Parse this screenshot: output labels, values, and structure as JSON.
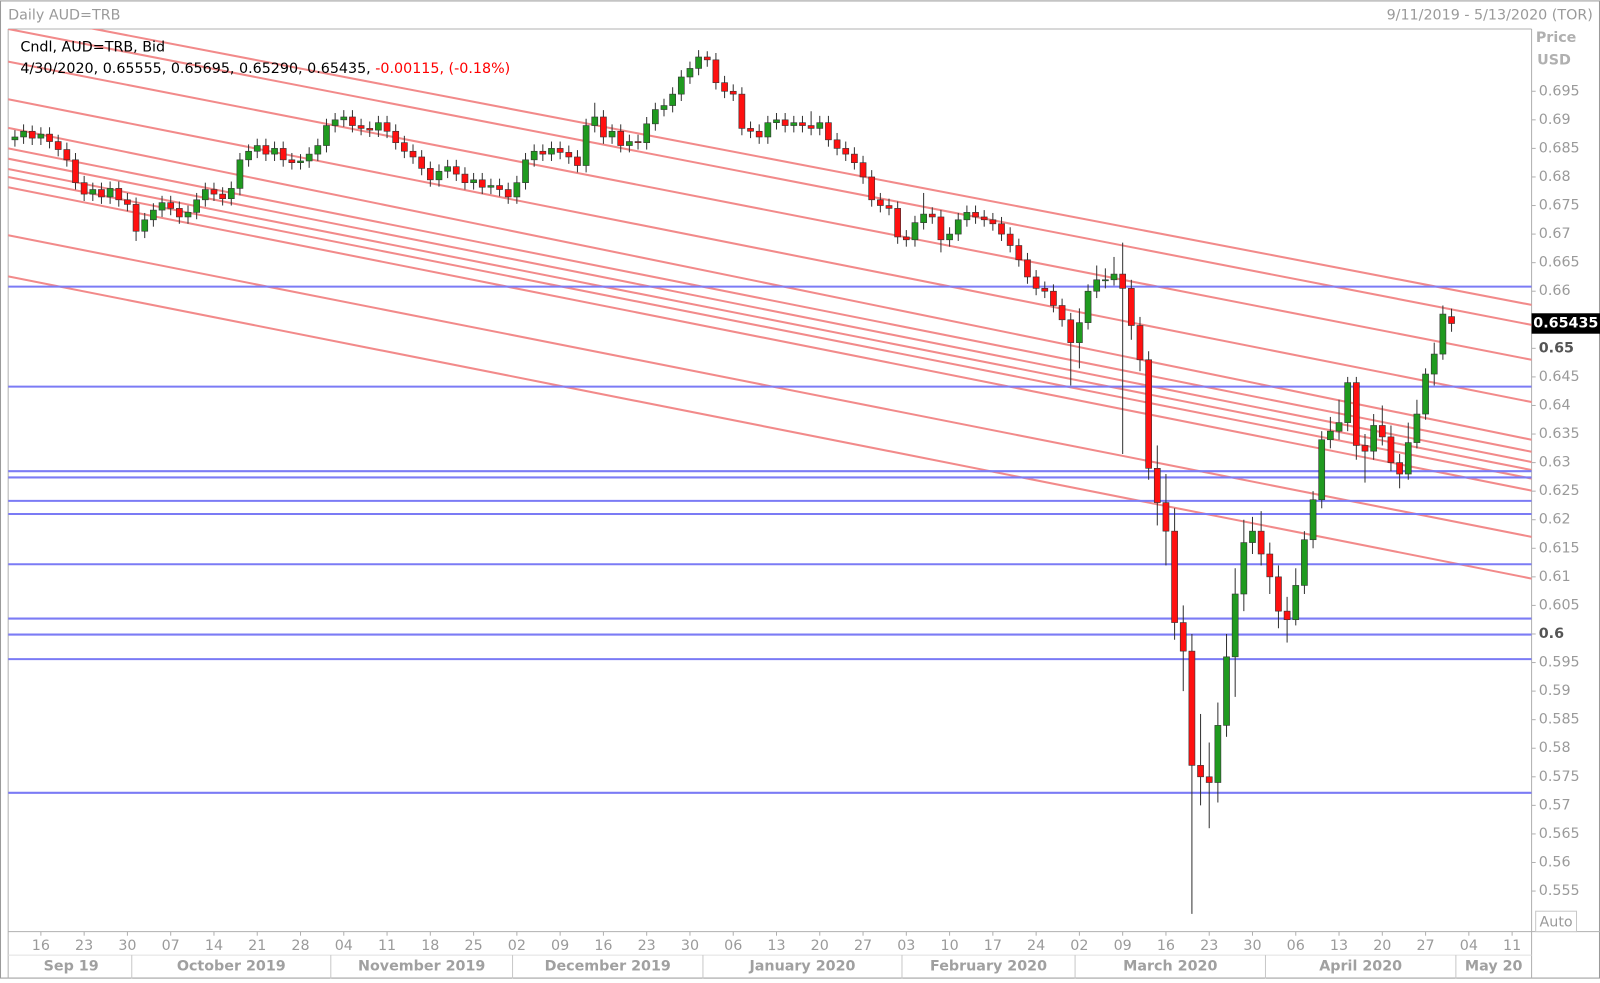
{
  "header": {
    "title": "Daily AUD=TRB",
    "range": "9/11/2019 - 5/13/2020 (TOR)"
  },
  "chart_data": {
    "type": "candlestick",
    "legend": {
      "series": "Cndl, AUD=TRB, Bid",
      "info": "4/30/2020, 0.65555, 0.65695, 0.65290, 0.65435, ",
      "change": "-0.00115, (-0.18%)",
      "change_color": "#ff0000"
    },
    "y_label": "Price",
    "y_unit": "USD",
    "auto_button": "Auto",
    "up_color": "#1f9a1f",
    "down_color": "#ff1010",
    "grid": false,
    "open": [
      0.6865,
      0.687,
      0.688,
      0.6868,
      0.6875,
      0.6862,
      0.6848,
      0.683,
      0.679,
      0.677,
      0.6778,
      0.6765,
      0.678,
      0.676,
      0.6752,
      0.6705,
      0.6725,
      0.6742,
      0.6755,
      0.6745,
      0.673,
      0.6738,
      0.676,
      0.6778,
      0.677,
      0.6762,
      0.678,
      0.683,
      0.6845,
      0.6855,
      0.684,
      0.685,
      0.683,
      0.6825,
      0.6828,
      0.684,
      0.6855,
      0.689,
      0.69,
      0.6905,
      0.689,
      0.6885,
      0.6882,
      0.6895,
      0.688,
      0.686,
      0.6845,
      0.6835,
      0.6815,
      0.6795,
      0.681,
      0.6818,
      0.6805,
      0.679,
      0.6795,
      0.6782,
      0.6785,
      0.6778,
      0.6765,
      0.679,
      0.683,
      0.6845,
      0.684,
      0.685,
      0.6843,
      0.6835,
      0.682,
      0.689,
      0.6905,
      0.687,
      0.688,
      0.6855,
      0.6862,
      0.686,
      0.6893,
      0.6918,
      0.6925,
      0.6945,
      0.6975,
      0.699,
      0.701,
      0.7005,
      0.6965,
      0.695,
      0.6945,
      0.6885,
      0.688,
      0.687,
      0.6895,
      0.69,
      0.689,
      0.6895,
      0.689,
      0.6885,
      0.6895,
      0.6865,
      0.685,
      0.684,
      0.6825,
      0.68,
      0.676,
      0.675,
      0.6745,
      0.6695,
      0.669,
      0.672,
      0.6735,
      0.673,
      0.669,
      0.67,
      0.6725,
      0.6738,
      0.673,
      0.6725,
      0.6718,
      0.67,
      0.668,
      0.6655,
      0.6625,
      0.6605,
      0.66,
      0.6575,
      0.655,
      0.651,
      0.6545,
      0.66,
      0.662,
      0.662,
      0.663,
      0.6605,
      0.654,
      0.648,
      0.629,
      0.623,
      0.618,
      0.602,
      0.597,
      0.577,
      0.575,
      0.574,
      0.584,
      0.596,
      0.607,
      0.616,
      0.618,
      0.614,
      0.61,
      0.604,
      0.6025,
      0.6085,
      0.6165,
      0.6235,
      0.634,
      0.6355,
      0.637,
      0.644,
      0.633,
      0.632,
      0.6365,
      0.6345,
      0.63,
      0.628,
      0.6335,
      0.6385,
      0.6455,
      0.649,
      0.65555
    ],
    "high": [
      0.6882,
      0.6892,
      0.689,
      0.6887,
      0.6887,
      0.6874,
      0.686,
      0.6842,
      0.6802,
      0.679,
      0.679,
      0.6792,
      0.6792,
      0.6772,
      0.6764,
      0.6737,
      0.6754,
      0.6767,
      0.6767,
      0.6757,
      0.675,
      0.6772,
      0.679,
      0.679,
      0.6782,
      0.6792,
      0.6842,
      0.6857,
      0.6867,
      0.6867,
      0.6862,
      0.6862,
      0.6842,
      0.684,
      0.6852,
      0.6867,
      0.6902,
      0.6912,
      0.6917,
      0.6917,
      0.6902,
      0.6897,
      0.6907,
      0.6907,
      0.6892,
      0.6872,
      0.6857,
      0.6847,
      0.6827,
      0.6822,
      0.683,
      0.683,
      0.6817,
      0.6807,
      0.6807,
      0.6797,
      0.6797,
      0.679,
      0.6802,
      0.6842,
      0.6857,
      0.6857,
      0.6862,
      0.6862,
      0.6855,
      0.6847,
      0.6902,
      0.693,
      0.6917,
      0.6892,
      0.6892,
      0.6874,
      0.6874,
      0.6905,
      0.693,
      0.6937,
      0.6957,
      0.6987,
      0.7002,
      0.7022,
      0.702,
      0.7017,
      0.6977,
      0.6962,
      0.6957,
      0.6897,
      0.6892,
      0.6907,
      0.6912,
      0.6912,
      0.6907,
      0.6907,
      0.6915,
      0.6907,
      0.6907,
      0.6877,
      0.6862,
      0.6852,
      0.6837,
      0.6812,
      0.6772,
      0.6762,
      0.6757,
      0.6707,
      0.6732,
      0.6772,
      0.6747,
      0.6742,
      0.6712,
      0.6737,
      0.675,
      0.675,
      0.6742,
      0.6737,
      0.673,
      0.6712,
      0.6692,
      0.6667,
      0.6637,
      0.6617,
      0.6612,
      0.6587,
      0.6562,
      0.657,
      0.6612,
      0.6645,
      0.664,
      0.666,
      0.6685,
      0.662,
      0.6555,
      0.6495,
      0.633,
      0.628,
      0.622,
      0.605,
      0.6,
      0.586,
      0.581,
      0.588,
      0.6,
      0.6115,
      0.62,
      0.6205,
      0.6215,
      0.616,
      0.612,
      0.6065,
      0.6115,
      0.618,
      0.625,
      0.6355,
      0.638,
      0.641,
      0.645,
      0.645,
      0.635,
      0.6385,
      0.64,
      0.6365,
      0.6315,
      0.637,
      0.641,
      0.6465,
      0.651,
      0.6575,
      0.65695
    ],
    "low": [
      0.6853,
      0.6858,
      0.6856,
      0.6856,
      0.685,
      0.6836,
      0.6818,
      0.6778,
      0.6758,
      0.6758,
      0.6753,
      0.6753,
      0.6748,
      0.674,
      0.6688,
      0.6693,
      0.6713,
      0.673,
      0.6733,
      0.6718,
      0.6718,
      0.6726,
      0.6748,
      0.6758,
      0.675,
      0.675,
      0.6768,
      0.6818,
      0.6833,
      0.6828,
      0.6828,
      0.6818,
      0.6813,
      0.6813,
      0.6816,
      0.6828,
      0.6843,
      0.6878,
      0.6888,
      0.6878,
      0.6873,
      0.687,
      0.687,
      0.6868,
      0.6848,
      0.6833,
      0.6823,
      0.6803,
      0.6783,
      0.6783,
      0.6798,
      0.6793,
      0.6778,
      0.6778,
      0.677,
      0.677,
      0.6766,
      0.6753,
      0.6753,
      0.6778,
      0.6818,
      0.6828,
      0.6828,
      0.6831,
      0.6823,
      0.6808,
      0.6808,
      0.6878,
      0.6858,
      0.6858,
      0.6843,
      0.6843,
      0.6848,
      0.6848,
      0.6881,
      0.6906,
      0.6913,
      0.6933,
      0.6963,
      0.6978,
      0.6993,
      0.6953,
      0.6938,
      0.6933,
      0.6873,
      0.6868,
      0.6858,
      0.6858,
      0.6883,
      0.6878,
      0.6878,
      0.6878,
      0.6873,
      0.6873,
      0.6853,
      0.6838,
      0.6828,
      0.6813,
      0.6788,
      0.6748,
      0.6738,
      0.6733,
      0.6683,
      0.6678,
      0.6678,
      0.6708,
      0.6718,
      0.6668,
      0.6678,
      0.6688,
      0.6713,
      0.6718,
      0.6713,
      0.6706,
      0.6688,
      0.6668,
      0.6643,
      0.6613,
      0.6593,
      0.6588,
      0.6563,
      0.6538,
      0.6435,
      0.6465,
      0.6533,
      0.6588,
      0.6605,
      0.661,
      0.6315,
      0.6515,
      0.646,
      0.627,
      0.619,
      0.612,
      0.599,
      0.59,
      0.551,
      0.57,
      0.566,
      0.5705,
      0.582,
      0.589,
      0.604,
      0.614,
      0.612,
      0.607,
      0.601,
      0.5985,
      0.6015,
      0.607,
      0.615,
      0.622,
      0.6325,
      0.634,
      0.6355,
      0.6305,
      0.6265,
      0.6305,
      0.633,
      0.6285,
      0.6255,
      0.627,
      0.6325,
      0.6375,
      0.6435,
      0.648,
      0.6529
    ],
    "close": [
      0.687,
      0.688,
      0.6868,
      0.6875,
      0.6862,
      0.6848,
      0.683,
      0.679,
      0.677,
      0.6778,
      0.6765,
      0.678,
      0.676,
      0.6752,
      0.6705,
      0.6725,
      0.6742,
      0.6755,
      0.6745,
      0.673,
      0.6738,
      0.676,
      0.6778,
      0.677,
      0.6762,
      0.678,
      0.683,
      0.6845,
      0.6855,
      0.684,
      0.685,
      0.683,
      0.6825,
      0.6828,
      0.684,
      0.6855,
      0.689,
      0.69,
      0.6905,
      0.689,
      0.6885,
      0.6882,
      0.6895,
      0.688,
      0.686,
      0.6845,
      0.6835,
      0.6815,
      0.6795,
      0.681,
      0.6818,
      0.6805,
      0.679,
      0.6795,
      0.6782,
      0.6785,
      0.6778,
      0.6765,
      0.679,
      0.683,
      0.6845,
      0.684,
      0.685,
      0.6843,
      0.6835,
      0.682,
      0.689,
      0.6905,
      0.687,
      0.688,
      0.6855,
      0.6862,
      0.686,
      0.6893,
      0.6918,
      0.6925,
      0.6945,
      0.6975,
      0.699,
      0.701,
      0.7005,
      0.6965,
      0.695,
      0.6945,
      0.6885,
      0.688,
      0.687,
      0.6895,
      0.69,
      0.689,
      0.6895,
      0.689,
      0.6885,
      0.6895,
      0.6865,
      0.685,
      0.684,
      0.6825,
      0.68,
      0.676,
      0.675,
      0.6745,
      0.6695,
      0.669,
      0.672,
      0.6735,
      0.673,
      0.669,
      0.67,
      0.6725,
      0.6738,
      0.673,
      0.6725,
      0.6718,
      0.67,
      0.668,
      0.6655,
      0.6625,
      0.6605,
      0.66,
      0.6575,
      0.655,
      0.651,
      0.6545,
      0.66,
      0.662,
      0.662,
      0.663,
      0.6605,
      0.654,
      0.648,
      0.629,
      0.623,
      0.618,
      0.602,
      0.597,
      0.577,
      0.575,
      0.574,
      0.584,
      0.596,
      0.607,
      0.616,
      0.618,
      0.614,
      0.61,
      0.604,
      0.6025,
      0.6085,
      0.6165,
      0.6235,
      0.634,
      0.6355,
      0.637,
      0.644,
      0.633,
      0.632,
      0.6365,
      0.6345,
      0.63,
      0.628,
      0.6335,
      0.6385,
      0.6455,
      0.649,
      0.656,
      0.65435
    ],
    "xlim": [
      -0.78,
      175.25
    ],
    "xticks": [
      {
        "value": 3,
        "label": "16"
      },
      {
        "value": 8,
        "label": "23"
      },
      {
        "value": 13,
        "label": "30"
      },
      {
        "value": 18,
        "label": "07"
      },
      {
        "value": 23,
        "label": "14"
      },
      {
        "value": 28,
        "label": "21"
      },
      {
        "value": 33,
        "label": "28"
      },
      {
        "value": 38,
        "label": "04"
      },
      {
        "value": 43,
        "label": "11"
      },
      {
        "value": 48,
        "label": "18"
      },
      {
        "value": 53,
        "label": "25"
      },
      {
        "value": 58,
        "label": "02"
      },
      {
        "value": 63,
        "label": "09"
      },
      {
        "value": 68,
        "label": "16"
      },
      {
        "value": 73,
        "label": "23"
      },
      {
        "value": 78,
        "label": "30"
      },
      {
        "value": 83,
        "label": "06"
      },
      {
        "value": 88,
        "label": "13"
      },
      {
        "value": 93,
        "label": "20"
      },
      {
        "value": 98,
        "label": "27"
      },
      {
        "value": 103,
        "label": "03"
      },
      {
        "value": 108,
        "label": "10"
      },
      {
        "value": 113,
        "label": "17"
      },
      {
        "value": 118,
        "label": "24"
      },
      {
        "value": 123,
        "label": "02"
      },
      {
        "value": 128,
        "label": "09"
      },
      {
        "value": 133,
        "label": "16"
      },
      {
        "value": 138,
        "label": "23"
      },
      {
        "value": 143,
        "label": "30"
      },
      {
        "value": 148,
        "label": "06"
      },
      {
        "value": 153,
        "label": "13"
      },
      {
        "value": 158,
        "label": "20"
      },
      {
        "value": 163,
        "label": "27"
      },
      {
        "value": 168,
        "label": "04"
      },
      {
        "value": 173,
        "label": "11"
      }
    ],
    "months": [
      {
        "value": 0,
        "label": "Sep 19"
      },
      {
        "value": 14,
        "label": "October 2019"
      },
      {
        "value": 37,
        "label": "November 2019"
      },
      {
        "value": 58,
        "label": "December 2019"
      },
      {
        "value": 80,
        "label": "January 2020"
      },
      {
        "value": 103,
        "label": "February 2020"
      },
      {
        "value": 123,
        "label": "March 2020"
      },
      {
        "value": 145,
        "label": "April 2020"
      },
      {
        "value": 167,
        "label": "May 20"
      }
    ],
    "ylim": [
      0.5479,
      0.7059
    ],
    "yticks": [
      0.555,
      0.56,
      0.565,
      0.57,
      0.575,
      0.58,
      0.585,
      0.59,
      0.595,
      0.6,
      0.605,
      0.61,
      0.615,
      0.62,
      0.625,
      0.63,
      0.635,
      0.64,
      0.645,
      0.65,
      0.655,
      0.66,
      0.665,
      0.67,
      0.675,
      0.68,
      0.685,
      0.69,
      0.695
    ],
    "horizontal_lines": {
      "color": "#7b7bf5",
      "values": [
        0.6608,
        0.6433,
        0.6285,
        0.6274,
        0.6233,
        0.621,
        0.6122,
        0.6027,
        0.5999,
        0.5956,
        0.5722
      ]
    },
    "trend_lines": {
      "color": "#f28a8a",
      "lines": [
        [
          [
            -0.78,
            0.7088
          ],
          [
            175.25,
            0.6576
          ]
        ],
        [
          [
            -0.78,
            0.7059
          ],
          [
            175.25,
            0.6541
          ]
        ],
        [
          [
            -0.78,
            0.7002
          ],
          [
            175.25,
            0.648
          ]
        ],
        [
          [
            -0.78,
            0.6936
          ],
          [
            175.25,
            0.6406
          ]
        ],
        [
          [
            -0.78,
            0.6886
          ],
          [
            175.25,
            0.634
          ]
        ],
        [
          [
            -0.78,
            0.685
          ],
          [
            175.25,
            0.6319
          ]
        ],
        [
          [
            -0.78,
            0.6832
          ],
          [
            175.25,
            0.6301
          ]
        ],
        [
          [
            -0.78,
            0.6814
          ],
          [
            175.25,
            0.6287
          ]
        ],
        [
          [
            -0.78,
            0.68
          ],
          [
            175.25,
            0.6272
          ]
        ],
        [
          [
            -0.78,
            0.6782
          ],
          [
            175.25,
            0.6251
          ]
        ],
        [
          [
            -0.78,
            0.6698
          ],
          [
            175.25,
            0.617
          ]
        ],
        [
          [
            -0.78,
            0.6626
          ],
          [
            175.25,
            0.6097
          ]
        ]
      ]
    }
  }
}
